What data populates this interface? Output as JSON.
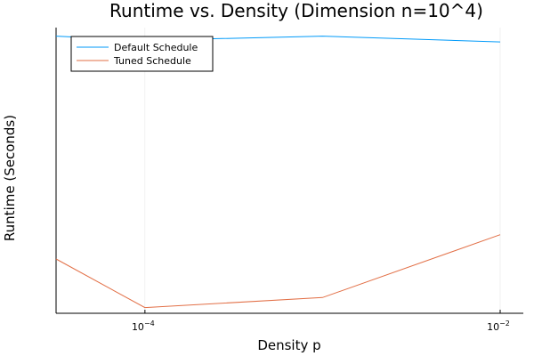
{
  "chart_data": {
    "type": "line",
    "title": "Runtime vs. Density (Dimension n=10^4)",
    "xlabel": "Density p",
    "ylabel": "Runtime (Seconds)",
    "x_scale": "log10",
    "xlim": [
      3.16e-05,
      0.0135
    ],
    "ylim": [
      0,
      1.0
    ],
    "x_ticks": [
      {
        "value": 0.0001,
        "base": "10",
        "exponent": "−4"
      },
      {
        "value": 0.01,
        "base": "10",
        "exponent": "−2"
      }
    ],
    "grid": true,
    "legend_position": "top-left",
    "x": [
      3.16e-05,
      0.0001,
      0.001,
      0.01
    ],
    "series": [
      {
        "name": "Default Schedule",
        "color": "#009af9",
        "values": [
          0.97,
          0.955,
          0.97,
          0.95
        ]
      },
      {
        "name": "Tuned Schedule",
        "color": "#e26f46",
        "values": [
          0.19,
          0.02,
          0.055,
          0.275
        ]
      }
    ]
  }
}
